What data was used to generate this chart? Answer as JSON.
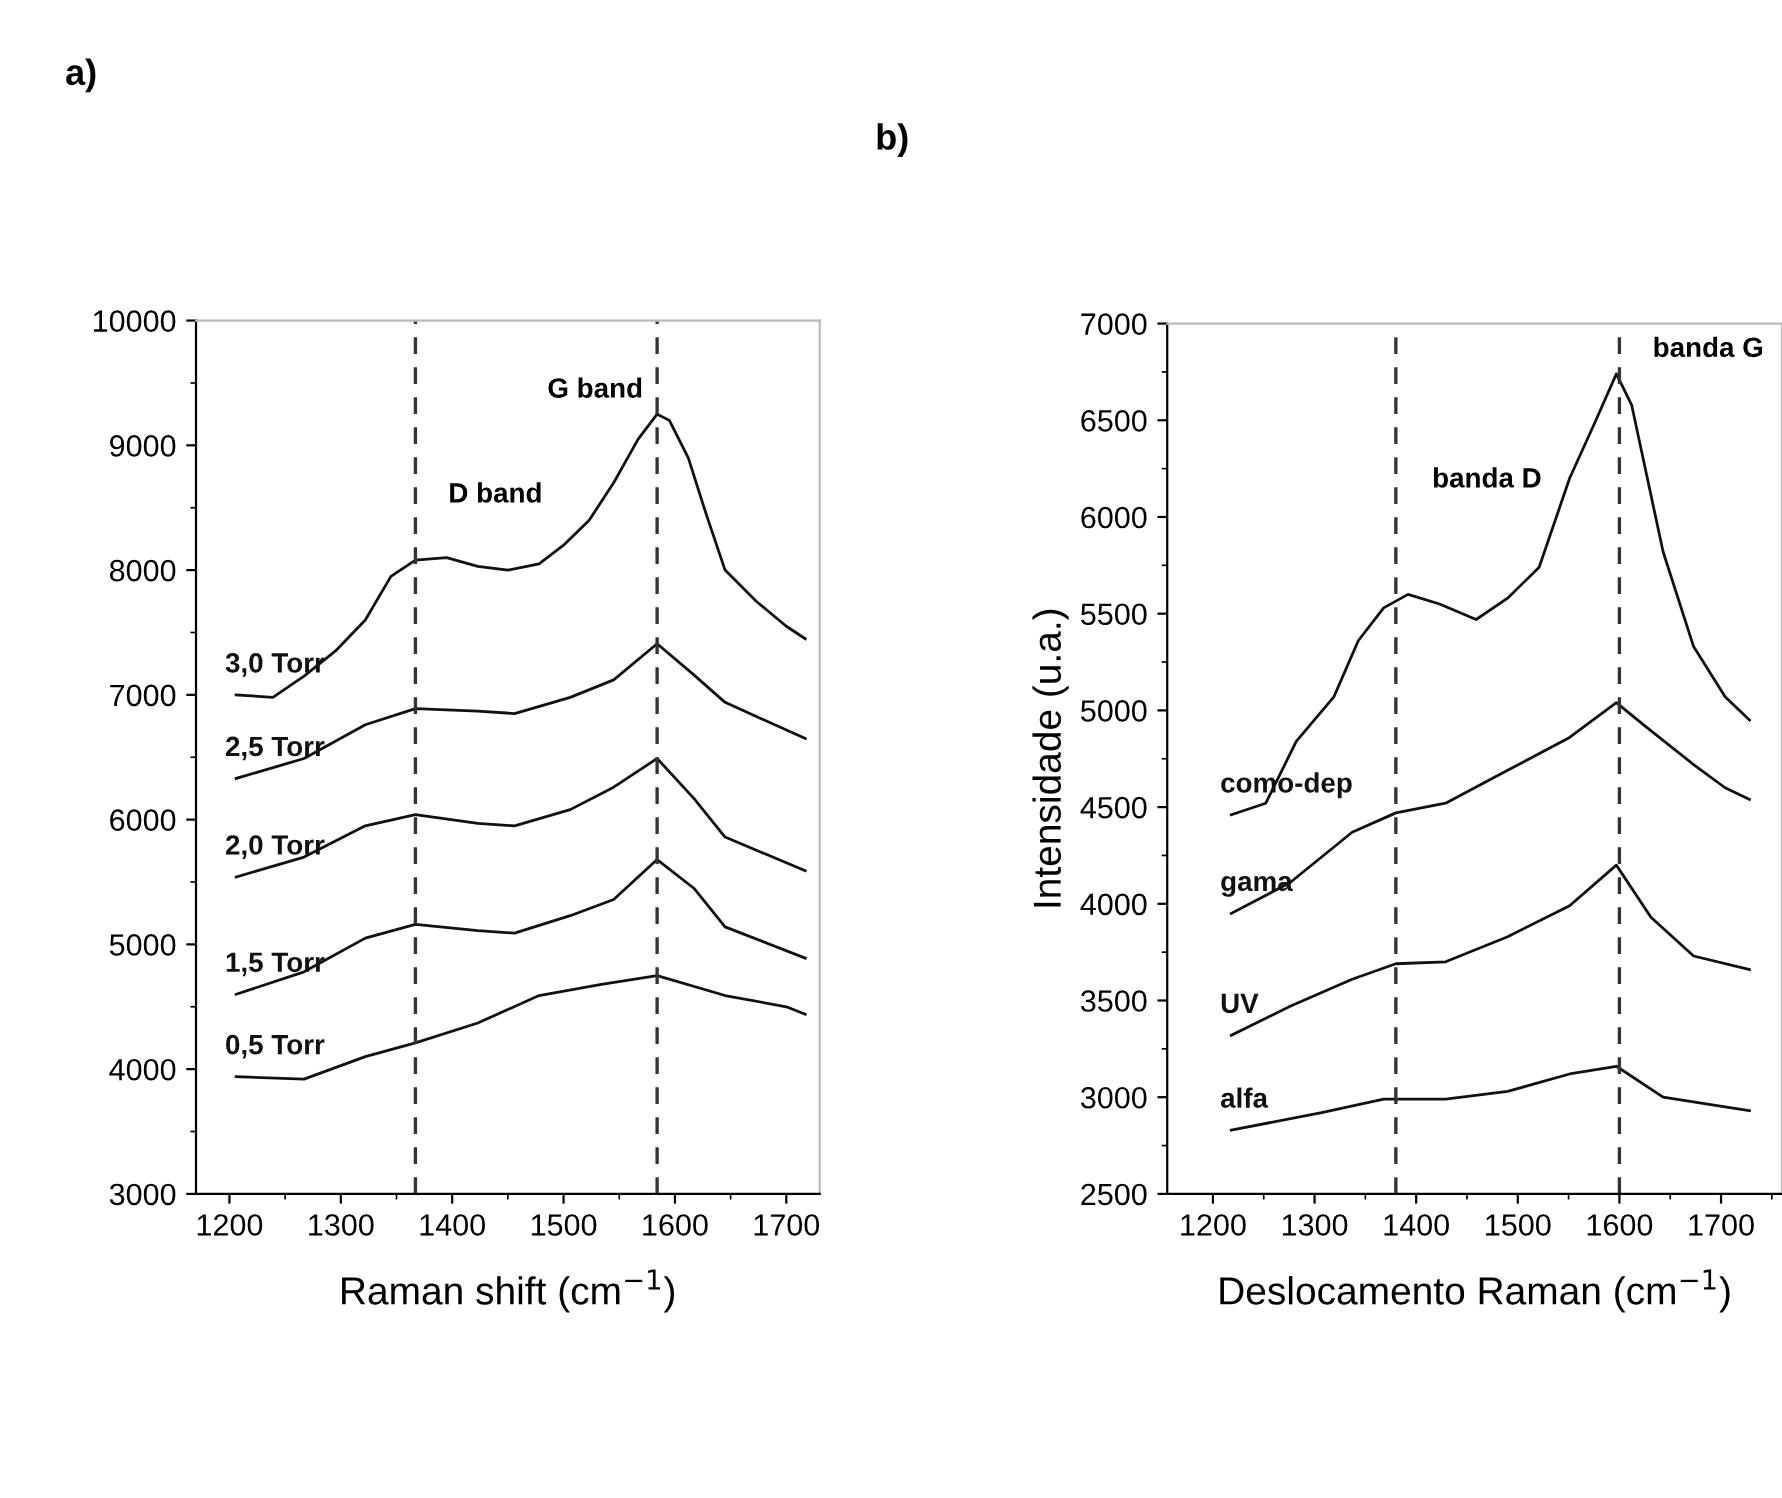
{
  "chart_data": [
    {
      "type": "line",
      "title": "a)",
      "xlabel": "Raman shift (cm$^{−1}$)",
      "xlim": [
        1170,
        1730
      ],
      "xticks": [
        1200,
        1300,
        1400,
        1500,
        1600,
        1700
      ],
      "ylim": [
        3000,
        10000
      ],
      "yticks": [
        3000,
        4000,
        5000,
        6000,
        7000,
        8000,
        9000,
        10000
      ],
      "grid": false,
      "legend": false,
      "marker": "none",
      "line_style": "solid",
      "series": [
        {
          "name": "3,0 Torr",
          "color": "#111111",
          "x": [
            1206,
            1239,
            1267,
            1295,
            1322,
            1345,
            1367,
            1395,
            1423,
            1450,
            1478,
            1500,
            1523,
            1545,
            1567,
            1584,
            1595,
            1612,
            1628,
            1645,
            1673,
            1700,
            1717
          ],
          "values": [
            7000,
            6980,
            7150,
            7350,
            7600,
            7950,
            8080,
            8100,
            8030,
            8000,
            8050,
            8200,
            8400,
            8700,
            9050,
            9250,
            9200,
            8900,
            8450,
            8000,
            7750,
            7550,
            7450
          ]
        },
        {
          "name": "2,5 Torr",
          "color": "#111111",
          "x": [
            1206,
            1267,
            1322,
            1367,
            1423,
            1456,
            1506,
            1545,
            1584,
            1617,
            1645,
            1717
          ],
          "values": [
            6330,
            6490,
            6760,
            6890,
            6870,
            6850,
            6980,
            7120,
            7410,
            7160,
            6940,
            6650
          ]
        },
        {
          "name": "2,0 Torr",
          "color": "#111111",
          "x": [
            1206,
            1267,
            1322,
            1367,
            1423,
            1456,
            1506,
            1545,
            1584,
            1617,
            1645,
            1717
          ],
          "values": [
            5540,
            5700,
            5950,
            6040,
            5970,
            5950,
            6080,
            6260,
            6490,
            6170,
            5860,
            5590
          ]
        },
        {
          "name": "1,5 Torr",
          "color": "#111111",
          "x": [
            1206,
            1267,
            1322,
            1367,
            1423,
            1456,
            1506,
            1545,
            1584,
            1617,
            1645,
            1717
          ],
          "values": [
            4600,
            4780,
            5050,
            5160,
            5110,
            5090,
            5230,
            5360,
            5680,
            5450,
            5140,
            4890
          ]
        },
        {
          "name": "0,5 Torr",
          "color": "#111111",
          "x": [
            1206,
            1267,
            1322,
            1367,
            1423,
            1478,
            1534,
            1584,
            1645,
            1700,
            1717
          ],
          "values": [
            3940,
            3920,
            4100,
            4210,
            4370,
            4590,
            4680,
            4750,
            4590,
            4500,
            4440
          ]
        }
      ],
      "ref_lines": [
        {
          "axis": "x",
          "value": 1367,
          "color": "#333333",
          "line_style": "dashed"
        },
        {
          "axis": "x",
          "value": 1584,
          "color": "#333333",
          "line_style": "dashed"
        }
      ],
      "annotations": [
        "D band",
        "G band"
      ]
    },
    {
      "type": "line",
      "title": "b)",
      "xlabel": "Deslocamento Raman (cm$^{−1}$)",
      "ylabel": "Intensidade (u.a.)",
      "xlim": [
        1155,
        1760
      ],
      "xticks": [
        1200,
        1300,
        1400,
        1500,
        1600,
        1700
      ],
      "ylim": [
        2500,
        7000
      ],
      "yticks": [
        2500,
        3000,
        3500,
        4000,
        4500,
        5000,
        5500,
        6000,
        6500,
        7000
      ],
      "grid": false,
      "legend": false,
      "marker": "none",
      "line_style": "solid",
      "series": [
        {
          "name": "como-dep",
          "color": "#111111",
          "x": [
            1218,
            1252,
            1282,
            1319,
            1343,
            1368,
            1392,
            1423,
            1459,
            1490,
            1521,
            1551,
            1576,
            1597,
            1612,
            1643,
            1673,
            1704,
            1728
          ],
          "values": [
            4460,
            4520,
            4840,
            5070,
            5360,
            5530,
            5600,
            5550,
            5470,
            5580,
            5740,
            6200,
            6490,
            6740,
            6580,
            5820,
            5330,
            5070,
            4950
          ]
        },
        {
          "name": "gama",
          "color": "#111111",
          "x": [
            1218,
            1276,
            1337,
            1380,
            1429,
            1490,
            1551,
            1597,
            1625,
            1673,
            1704,
            1728
          ],
          "values": [
            3950,
            4110,
            4370,
            4470,
            4520,
            4690,
            4860,
            5040,
            4920,
            4720,
            4600,
            4540
          ]
        },
        {
          "name": "UV",
          "color": "#111111",
          "x": [
            1218,
            1276,
            1337,
            1380,
            1429,
            1490,
            1551,
            1597,
            1631,
            1673,
            1728
          ],
          "values": [
            3320,
            3470,
            3610,
            3690,
            3700,
            3830,
            3990,
            4200,
            3930,
            3730,
            3660
          ]
        },
        {
          "name": "alfa",
          "color": "#111111",
          "x": [
            1218,
            1307,
            1368,
            1429,
            1490,
            1551,
            1597,
            1643,
            1704,
            1728
          ],
          "values": [
            2830,
            2920,
            2990,
            2990,
            3030,
            3120,
            3160,
            3000,
            2950,
            2930
          ]
        }
      ],
      "ref_lines": [
        {
          "axis": "x",
          "value": 1380,
          "color": "#333333",
          "line_style": "dashed"
        },
        {
          "axis": "x",
          "value": 1600,
          "color": "#333333",
          "line_style": "dashed"
        }
      ],
      "annotations": [
        "banda D",
        "banda G"
      ]
    }
  ]
}
